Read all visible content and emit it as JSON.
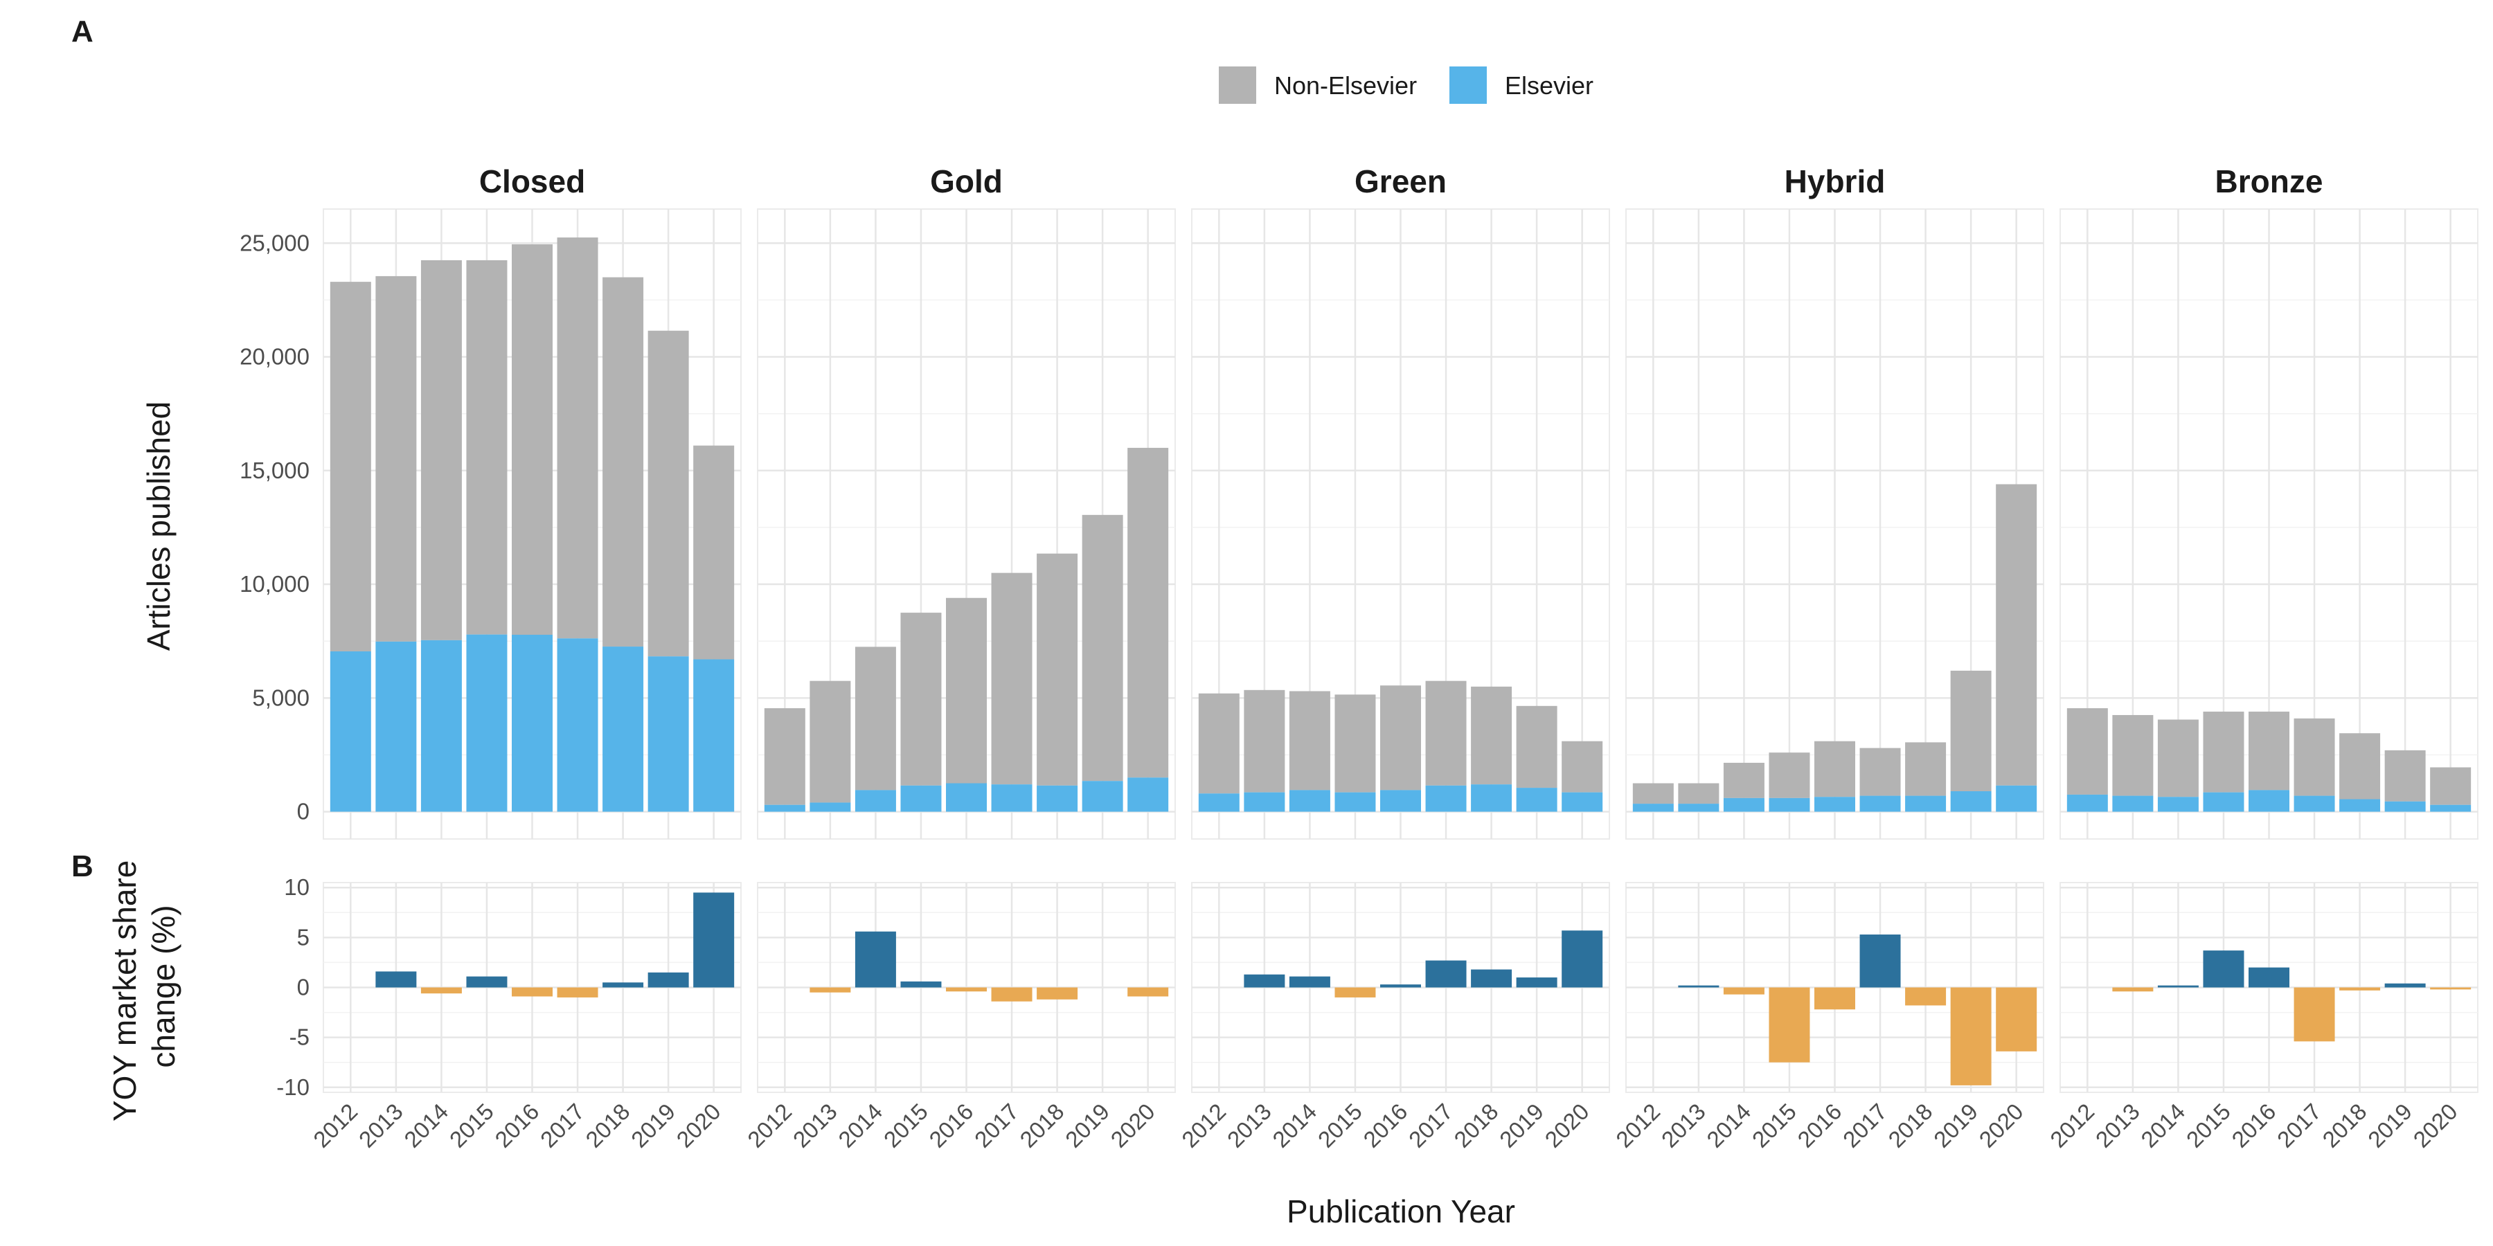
{
  "chart_data": {
    "type": "bar",
    "panel_labels": [
      "A",
      "B"
    ],
    "legend": {
      "placement": "top",
      "entries": [
        {
          "key": "non_elsevier",
          "label": "Non-Elsevier",
          "color": "#b3b3b3"
        },
        {
          "key": "elsevier",
          "label": "Elsevier",
          "color": "#56b4e9"
        }
      ]
    },
    "x": [
      "2012",
      "2013",
      "2014",
      "2015",
      "2016",
      "2017",
      "2018",
      "2019",
      "2020"
    ],
    "xlabel": "Publication Year",
    "top": {
      "ylabel": "Articles published",
      "ylim": [
        -1200,
        26500
      ],
      "yticks": [
        0,
        5000,
        10000,
        15000,
        20000,
        25000
      ],
      "ytick_labels": [
        "0",
        "5,000",
        "10,000",
        "15,000",
        "20,000",
        "25,000"
      ],
      "stacked": true
    },
    "bottom": {
      "ylabel_lines": [
        "YOY market share",
        "change (%)"
      ],
      "ylim": [
        -10.5,
        10.5
      ],
      "yticks": [
        -10,
        -5,
        0,
        5,
        10
      ],
      "ytick_labels": [
        "-10",
        "-5",
        "0",
        "5",
        "10"
      ],
      "positive_color": "#2c719c",
      "negative_color": "#e8a953"
    },
    "facets": [
      {
        "name": "Closed",
        "elsevier": [
          7050,
          7480,
          7540,
          7790,
          7780,
          7620,
          7260,
          6830,
          6700
        ],
        "total": [
          23300,
          23550,
          24250,
          24250,
          24950,
          25250,
          23500,
          21150,
          16100
        ],
        "yoy": [
          null,
          1.6,
          -0.6,
          1.1,
          -0.9,
          -1.0,
          0.5,
          1.5,
          9.5
        ]
      },
      {
        "name": "Gold",
        "elsevier": [
          300,
          400,
          950,
          1150,
          1250,
          1200,
          1150,
          1350,
          1500
        ],
        "total": [
          4550,
          5750,
          7250,
          8750,
          9400,
          10500,
          11350,
          13050,
          16000
        ],
        "yoy": [
          null,
          -0.5,
          5.6,
          0.6,
          -0.4,
          -1.4,
          -1.2,
          null,
          -0.9
        ]
      },
      {
        "name": "Green",
        "elsevier": [
          800,
          850,
          950,
          850,
          950,
          1150,
          1200,
          1050,
          850
        ],
        "total": [
          5200,
          5350,
          5300,
          5150,
          5550,
          5750,
          5500,
          4650,
          3100
        ],
        "yoy": [
          null,
          1.3,
          1.1,
          -1.0,
          0.3,
          2.7,
          1.8,
          1.0,
          5.7
        ]
      },
      {
        "name": "Hybrid",
        "elsevier": [
          350,
          350,
          600,
          600,
          650,
          700,
          700,
          900,
          1150
        ],
        "total": [
          1250,
          1250,
          2150,
          2600,
          3100,
          2800,
          3050,
          6200,
          14400
        ],
        "yoy": [
          null,
          0.2,
          -0.7,
          -7.5,
          -2.2,
          5.3,
          -1.8,
          -9.8,
          -6.4
        ]
      },
      {
        "name": "Bronze",
        "elsevier": [
          750,
          700,
          650,
          850,
          950,
          700,
          550,
          450,
          300
        ],
        "total": [
          4550,
          4250,
          4050,
          4400,
          4400,
          4100,
          3450,
          2700,
          1950
        ],
        "yoy": [
          null,
          -0.4,
          0.2,
          3.7,
          2.0,
          -5.4,
          -0.3,
          0.4,
          -0.2
        ]
      }
    ]
  }
}
